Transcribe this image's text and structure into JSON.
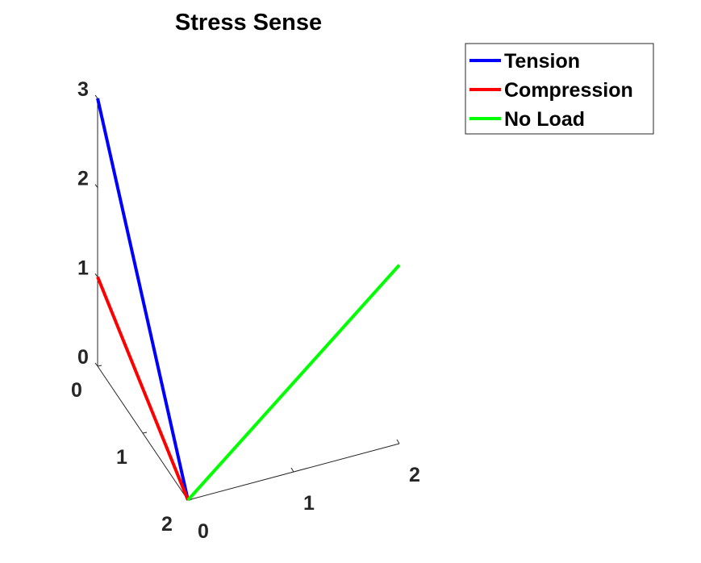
{
  "chart_data": {
    "type": "line",
    "title": "Stress Sense",
    "grid": false,
    "legend_placement": "top-right outside",
    "axes": {
      "x": {
        "ticks": [
          "0",
          "1",
          "2"
        ],
        "lim": [
          0,
          2
        ]
      },
      "y": {
        "ticks": [
          "0",
          "1",
          "2"
        ],
        "lim": [
          0,
          2
        ]
      },
      "z": {
        "ticks": [
          "0",
          "1",
          "2",
          "3"
        ],
        "lim": [
          0,
          3
        ]
      }
    },
    "series": [
      {
        "name": "Tension",
        "color": "#0000ff",
        "points": [
          {
            "x": 0,
            "y": 2,
            "z": 0
          },
          {
            "x": 0,
            "y": 0,
            "z": 3
          }
        ]
      },
      {
        "name": "Compression",
        "color": "#ff0000",
        "points": [
          {
            "x": 0,
            "y": 2,
            "z": 0
          },
          {
            "x": 0,
            "y": 0,
            "z": 1
          }
        ]
      },
      {
        "name": "No Load",
        "color": "#00ff00",
        "points": [
          {
            "x": 0,
            "y": 2,
            "z": 0
          },
          {
            "x": 2,
            "y": 2,
            "z": 2
          }
        ]
      }
    ]
  }
}
